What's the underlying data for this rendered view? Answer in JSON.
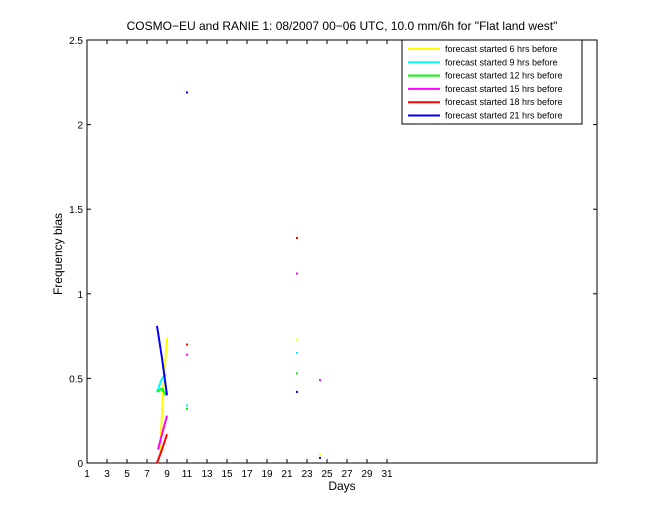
{
  "chart_data": {
    "type": "line",
    "title": "COSMO−EU and RANIE 1: 08/2007 00−06 UTC, 10.0 mm/6h for \"Flat land west\"",
    "xlabel": "Days",
    "ylabel": "Frequency bias",
    "xlim": [
      1,
      52
    ],
    "ylim": [
      0,
      2.5
    ],
    "xticks": [
      1,
      3,
      5,
      7,
      9,
      11,
      13,
      15,
      17,
      19,
      21,
      23,
      25,
      27,
      29,
      31
    ],
    "yticks": [
      0,
      0.5,
      1,
      1.5,
      2,
      2.5
    ],
    "ytick_labels": [
      "0",
      "0.5",
      "1",
      "1.5",
      "2",
      "2.5"
    ],
    "grid": false,
    "legend_position": "top-right",
    "series": [
      {
        "name": "forecast started 6 hrs before",
        "color": "#ffff00",
        "segments": [
          [
            [
              8.3,
              0.05
            ],
            [
              8.6,
              0.42
            ],
            [
              9.0,
              0.74
            ]
          ],
          [
            [
              22.0,
              0.73
            ]
          ],
          [
            [
              24.3,
              0.05
            ]
          ]
        ]
      },
      {
        "name": "forecast started 9 hrs before",
        "color": "#00ffff",
        "segments": [
          [
            [
              8.0,
              0.42
            ],
            [
              8.5,
              0.5
            ],
            [
              8.9,
              0.52
            ]
          ],
          [
            [
              11.0,
              0.34
            ]
          ],
          [
            [
              22.0,
              0.65
            ]
          ]
        ]
      },
      {
        "name": "forecast started 12 hrs before",
        "color": "#00ff00",
        "segments": [
          [
            [
              8.0,
              0.42
            ],
            [
              8.5,
              0.44
            ],
            [
              8.9,
              0.4
            ]
          ],
          [
            [
              11.0,
              0.32
            ]
          ],
          [
            [
              22.0,
              0.53
            ]
          ]
        ]
      },
      {
        "name": "forecast started 15 hrs before",
        "color": "#ff00ff",
        "segments": [
          [
            [
              8.1,
              0.08
            ],
            [
              8.5,
              0.17
            ],
            [
              9.0,
              0.28
            ]
          ],
          [
            [
              11.0,
              0.64
            ]
          ],
          [
            [
              22.0,
              1.12
            ]
          ],
          [
            [
              24.3,
              0.49
            ]
          ]
        ]
      },
      {
        "name": "forecast started 18 hrs before",
        "color": "#ff0000",
        "segments": [
          [
            [
              8.0,
              0.0
            ],
            [
              8.5,
              0.08
            ],
            [
              9.0,
              0.17
            ]
          ],
          [
            [
              11.0,
              0.7
            ]
          ],
          [
            [
              22.0,
              1.33
            ]
          ]
        ]
      },
      {
        "name": "forecast started 21 hrs before",
        "color": "#0000ff",
        "segments": [
          [
            [
              8.0,
              0.81
            ],
            [
              8.5,
              0.62
            ],
            [
              9.0,
              0.4
            ]
          ],
          [
            [
              11.0,
              2.19
            ]
          ],
          [
            [
              22.0,
              0.42
            ]
          ],
          [
            [
              24.3,
              0.03
            ]
          ]
        ]
      }
    ]
  }
}
